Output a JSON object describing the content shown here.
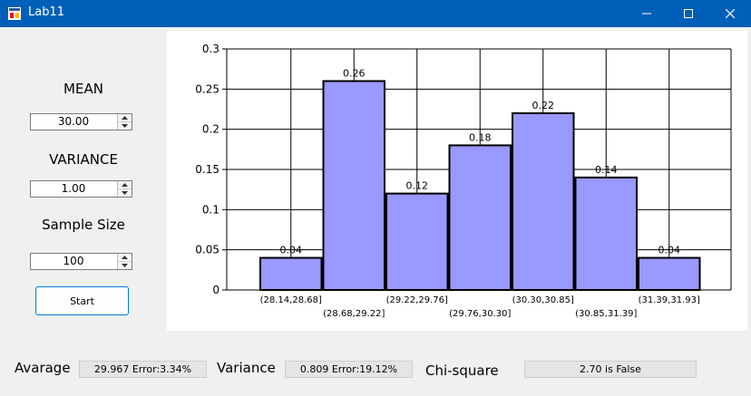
{
  "window": {
    "title": "Lab11"
  },
  "left": {
    "mean_label": "MEAN",
    "mean_value": "30.00",
    "variance_label": "VARIANCE",
    "variance_value": "1.00",
    "sample_label": "Sample Size",
    "sample_value": "100",
    "start_label": "Start"
  },
  "bottom": {
    "avg_label": "Avarage",
    "avg_value": "29.967 Error:3.34%",
    "var_label": "Variance",
    "var_value": "0.809 Error:19.12%",
    "chi_label": "Chi-square",
    "chi_value": "2.70 is False"
  },
  "chart_data": {
    "type": "bar",
    "categories": [
      "(28.14,28.68]",
      "(28.68,29.22]",
      "(29.22,29.76]",
      "(29.76,30.30]",
      "(30.30,30.85]",
      "(30.85,31.39]",
      "(31.39,31.93]"
    ],
    "values": [
      0.04,
      0.26,
      0.12,
      0.18,
      0.22,
      0.14,
      0.04
    ],
    "data_labels": [
      "0.04",
      "0.26",
      "0.12",
      "0.18",
      "0.22",
      "0.14",
      "0.04"
    ],
    "y_ticks": [
      "0",
      "0.05",
      "0.1",
      "0.15",
      "0.2",
      "0.25",
      "0.3"
    ],
    "ylim": [
      0,
      0.3
    ],
    "grid": true,
    "bar_color": "#9999ff",
    "bar_edge": "#000000"
  }
}
